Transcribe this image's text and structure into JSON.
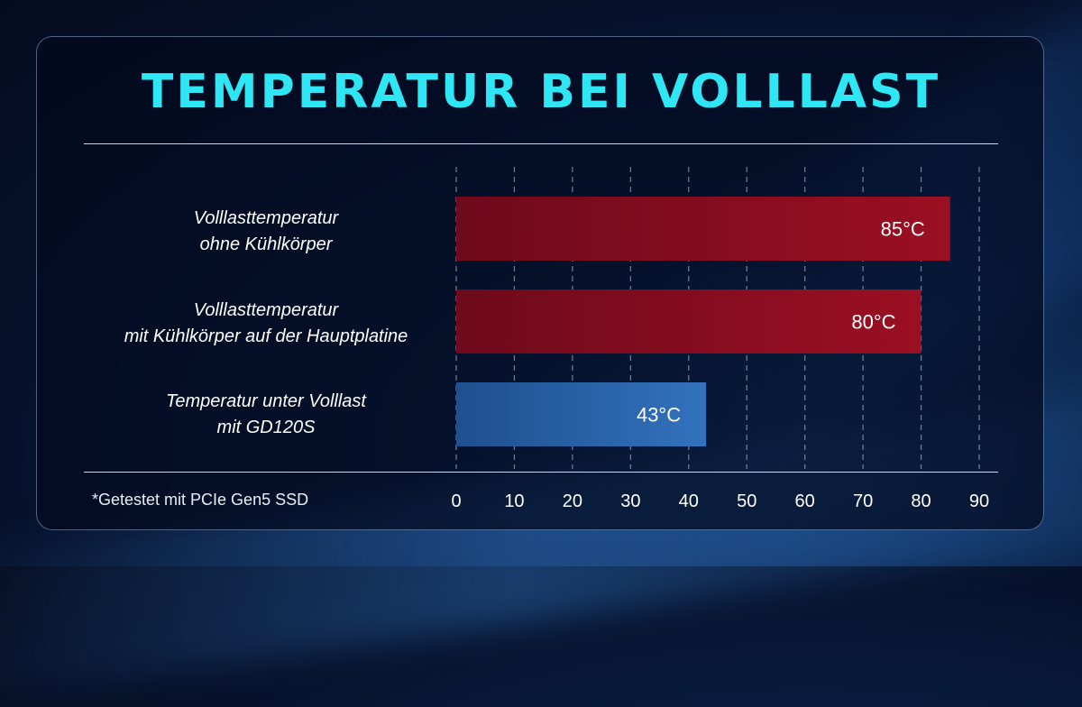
{
  "title": "Temperatur bei Volllast",
  "footnote": "*Getestet mit PCIe Gen5 SSD",
  "chart_data": {
    "type": "bar",
    "orientation": "horizontal",
    "title": "Temperatur bei Volllast",
    "categories": [
      [
        "Volllasttemperatur",
        "ohne Kühlkörper"
      ],
      [
        "Volllasttemperatur",
        "mit Kühlkörper auf der Hauptplatine"
      ],
      [
        "Temperatur unter Volllast",
        "mit GD120S"
      ]
    ],
    "values": [
      85,
      80,
      43
    ],
    "value_labels": [
      "85°C",
      "80°C",
      "43°C"
    ],
    "bar_colors": [
      "#8a0d1e",
      "#8a0d1e",
      "#2a63a6"
    ],
    "xlim": [
      0,
      90
    ],
    "xticks": [
      "0",
      "10",
      "20",
      "30",
      "40",
      "50",
      "60",
      "70",
      "80",
      "90"
    ],
    "grid": true,
    "xlabel": "",
    "ylabel": ""
  }
}
